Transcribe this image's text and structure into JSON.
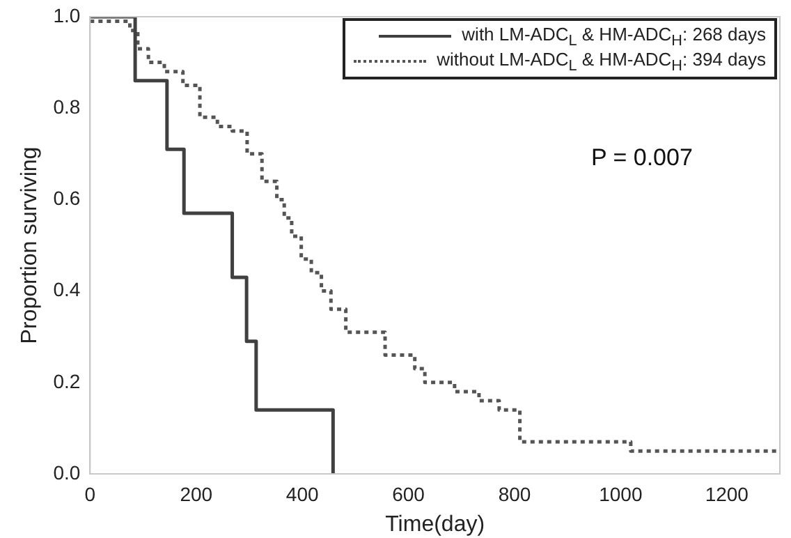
{
  "chart_data": {
    "type": "step",
    "xlabel": "Time(day)",
    "ylabel": "Proportion surviving",
    "xlim": [
      0,
      1300
    ],
    "xticks": [
      0,
      200,
      400,
      600,
      800,
      1000,
      1200
    ],
    "ylim": [
      0,
      1
    ],
    "yticks": [
      {
        "value": 0,
        "label": "0.0"
      },
      0.2,
      0.4,
      0.6,
      0.8,
      {
        "value": 1,
        "label": "1.0"
      }
    ],
    "grid": false,
    "legend": "top right",
    "annotations": [
      "P = 0.007"
    ],
    "series": [
      {
        "name": "with LM-ADC$_{L}$ & HM-ADC$_{H}$: 268 days",
        "color": "#404040",
        "line_style": "solid",
        "x": [
          0,
          85,
          145,
          177,
          268,
          295,
          313,
          458
        ],
        "values": [
          1,
          0.86,
          0.71,
          0.57,
          0.43,
          0.29,
          0.14,
          0
        ]
      },
      {
        "name": "without LM-ADC$_{L}$ & HM-ADC$_{H}$: 394 days",
        "color": "#555555",
        "line_style": "dotted",
        "x": [
          0,
          75,
          90,
          110,
          140,
          175,
          207,
          240,
          268,
          296,
          324,
          352,
          366,
          380,
          398,
          417,
          436,
          454,
          482,
          556,
          593,
          612,
          631,
          687,
          733,
          771,
          810,
          1019,
          1300
        ],
        "values": [
          0.99,
          0.97,
          0.93,
          0.9,
          0.88,
          0.85,
          0.78,
          0.76,
          0.75,
          0.7,
          0.64,
          0.6,
          0.56,
          0.52,
          0.47,
          0.44,
          0.4,
          0.36,
          0.31,
          0.26,
          0.26,
          0.23,
          0.2,
          0.18,
          0.16,
          0.14,
          0.07,
          0.05,
          0.05
        ]
      }
    ]
  }
}
